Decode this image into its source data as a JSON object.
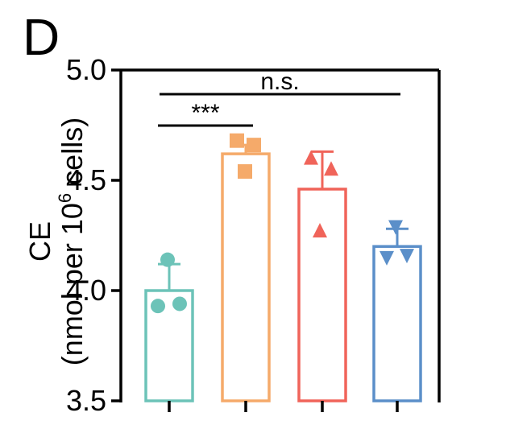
{
  "panel_label": "D",
  "chart_data": {
    "type": "bar",
    "ylabel_line1": "CE",
    "ylabel_line2_prefix": "(nmol per 10",
    "ylabel_line2_sup": "6",
    "ylabel_line2_suffix": " cells)",
    "ylim": [
      3.5,
      5.0
    ],
    "yticks": [
      {
        "value": 3.5,
        "label": "3.5"
      },
      {
        "value": 4.0,
        "label": "4.0"
      },
      {
        "value": 4.5,
        "label": "4.5"
      },
      {
        "value": 5.0,
        "label": "5.0"
      }
    ],
    "bars": [
      {
        "value": 4.0,
        "sd": 0.12,
        "color": "#6cc3b8",
        "marker": "circle",
        "points": [
          4.14,
          3.93,
          3.94
        ]
      },
      {
        "value": 4.62,
        "sd": 0.04,
        "color": "#f5aa6a",
        "marker": "square",
        "points": [
          4.68,
          4.66,
          4.54
        ]
      },
      {
        "value": 4.46,
        "sd": 0.17,
        "color": "#f0645a",
        "marker": "triangle-up",
        "points": [
          4.6,
          4.55,
          4.27
        ]
      },
      {
        "value": 4.2,
        "sd": 0.08,
        "color": "#5b8fc9",
        "marker": "triangle-down",
        "points": [
          4.29,
          4.15,
          4.16
        ]
      }
    ],
    "significance": [
      {
        "from": 0,
        "to": 3,
        "label": "n.s."
      },
      {
        "from": 0,
        "to": 1,
        "label": "***"
      }
    ]
  }
}
